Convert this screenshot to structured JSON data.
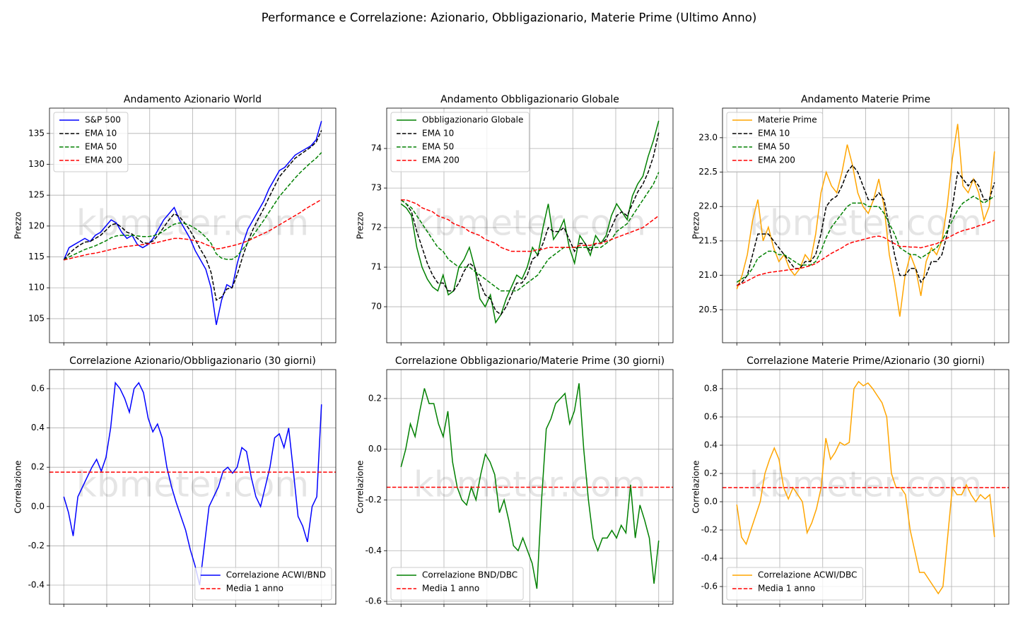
{
  "title": "Performance e Correlazione: Azionario, Obbligazionario, Materie Prime (Ultimo Anno)",
  "watermark": "kbmeter.com",
  "chart_data": [
    {
      "type": "line",
      "title": "Andamento Azionario World",
      "ylabel": "Prezzo",
      "ylim": [
        101.1,
        139.1
      ],
      "yticks": [
        105,
        110,
        115,
        120,
        125,
        130,
        135
      ],
      "grid": true,
      "legend": "upper left",
      "series": [
        {
          "name": "S&P 500",
          "color": "#0000ff",
          "linestyle": "solid",
          "values": [
            114.5,
            116.5,
            117,
            117.5,
            118,
            117.5,
            118.5,
            119,
            120,
            121,
            120.5,
            119,
            118,
            118.5,
            117,
            116.5,
            117,
            118,
            119.5,
            121,
            122,
            123,
            121,
            119.5,
            118,
            116,
            114.5,
            113,
            110,
            104,
            108,
            110.5,
            110,
            114,
            117,
            119.5,
            121,
            122.5,
            124,
            126,
            127.5,
            129,
            129.5,
            130.5,
            131.5,
            132,
            132.5,
            133,
            134,
            137
          ]
        },
        {
          "name": "EMA 10",
          "color": "#000000",
          "linestyle": "dashed",
          "values": [
            114.5,
            115.5,
            116.3,
            116.9,
            117.4,
            117.5,
            118,
            118.5,
            119.3,
            120.2,
            120.4,
            119.8,
            119,
            118.7,
            118,
            117.3,
            117.2,
            117.6,
            118.6,
            119.8,
            121,
            122,
            121.5,
            120.5,
            119.3,
            117.8,
            116.2,
            114.8,
            112.5,
            108,
            108.5,
            109.8,
            110,
            112.2,
            115,
            117.5,
            119.5,
            121.2,
            122.8,
            124.6,
            126.3,
            128,
            129,
            130,
            131,
            131.6,
            132.2,
            132.8,
            133.6,
            135.5
          ]
        },
        {
          "name": "EMA 50",
          "color": "#008000",
          "linestyle": "dashed",
          "values": [
            114.5,
            115,
            115.4,
            115.8,
            116.2,
            116.5,
            116.8,
            117.2,
            117.6,
            118.1,
            118.4,
            118.5,
            118.5,
            118.5,
            118.4,
            118.3,
            118.3,
            118.4,
            118.7,
            119.2,
            119.8,
            120.3,
            120.5,
            120.4,
            120.1,
            119.6,
            119,
            118.2,
            117.2,
            115.5,
            114.8,
            114.6,
            114.6,
            115.2,
            116.2,
            117.3,
            118.5,
            119.7,
            120.9,
            122.2,
            123.5,
            124.8,
            125.8,
            126.8,
            127.8,
            128.7,
            129.5,
            130.3,
            131,
            131.9
          ]
        },
        {
          "name": "EMA 200",
          "color": "#ff0000",
          "linestyle": "dashed",
          "values": [
            114.5,
            114.7,
            114.9,
            115.1,
            115.3,
            115.5,
            115.6,
            115.8,
            116,
            116.2,
            116.4,
            116.6,
            116.7,
            116.8,
            116.9,
            117,
            117.1,
            117.2,
            117.4,
            117.6,
            117.8,
            118,
            118,
            117.9,
            117.8,
            117.6,
            117.4,
            117,
            116.7,
            116.3,
            116.4,
            116.6,
            116.8,
            117,
            117.3,
            117.6,
            118,
            118.4,
            118.8,
            119.2,
            119.7,
            120.2,
            120.7,
            121.2,
            121.7,
            122.2,
            122.8,
            123.3,
            123.8,
            124.3
          ]
        }
      ]
    },
    {
      "type": "line",
      "title": "Andamento Obbligazionario Globale",
      "ylabel": "Prezzo",
      "ylim": [
        69.09,
        75.02
      ],
      "yticks": [
        70,
        71,
        72,
        73,
        74
      ],
      "grid": true,
      "legend": "upper left",
      "series": [
        {
          "name": "Obbligazionario Globale",
          "color": "#008000",
          "linestyle": "solid",
          "values": [
            72.6,
            72.5,
            72.3,
            71.5,
            71,
            70.7,
            70.5,
            70.4,
            70.8,
            70.3,
            70.4,
            71,
            71.2,
            71.5,
            71,
            70.2,
            70,
            70.3,
            69.6,
            69.8,
            70.2,
            70.5,
            70.8,
            70.7,
            71,
            71.5,
            71.3,
            72,
            72.6,
            71.7,
            71.9,
            72.2,
            71.5,
            71.1,
            71.8,
            71.6,
            71.3,
            71.8,
            71.6,
            71.8,
            72.3,
            72.6,
            72.4,
            72.2,
            72.8,
            73.1,
            73.3,
            73.8,
            74.2,
            74.7
          ]
        },
        {
          "name": "EMA 10",
          "color": "#000000",
          "linestyle": "dashed",
          "values": [
            72.7,
            72.6,
            72.4,
            71.9,
            71.5,
            71.1,
            70.8,
            70.6,
            70.6,
            70.4,
            70.4,
            70.6,
            70.9,
            71.1,
            71,
            70.6,
            70.3,
            70.2,
            69.9,
            69.8,
            70,
            70.3,
            70.6,
            70.6,
            70.8,
            71.2,
            71.3,
            71.6,
            72,
            71.9,
            71.9,
            72,
            71.7,
            71.4,
            71.6,
            71.6,
            71.4,
            71.6,
            71.6,
            71.7,
            72,
            72.3,
            72.4,
            72.3,
            72.6,
            72.9,
            73.1,
            73.4,
            73.8,
            74.4
          ]
        },
        {
          "name": "EMA 50",
          "color": "#008000",
          "linestyle": "dashed",
          "values": [
            72.7,
            72.6,
            72.5,
            72.3,
            72.1,
            71.9,
            71.7,
            71.5,
            71.4,
            71.2,
            71.1,
            71,
            71,
            71,
            70.9,
            70.8,
            70.7,
            70.6,
            70.5,
            70.4,
            70.4,
            70.4,
            70.4,
            70.5,
            70.6,
            70.7,
            70.8,
            71,
            71.2,
            71.3,
            71.4,
            71.5,
            71.5,
            71.5,
            71.5,
            71.5,
            71.5,
            71.5,
            71.5,
            71.6,
            71.7,
            71.9,
            72,
            72.1,
            72.3,
            72.5,
            72.7,
            72.9,
            73.1,
            73.4
          ]
        },
        {
          "name": "EMA 200",
          "color": "#ff0000",
          "linestyle": "dashed",
          "values": [
            72.7,
            72.7,
            72.65,
            72.6,
            72.5,
            72.45,
            72.4,
            72.3,
            72.25,
            72.2,
            72.1,
            72.05,
            72,
            71.9,
            71.85,
            71.8,
            71.7,
            71.65,
            71.6,
            71.5,
            71.45,
            71.4,
            71.4,
            71.4,
            71.4,
            71.4,
            71.45,
            71.45,
            71.5,
            71.5,
            71.5,
            71.5,
            71.5,
            71.5,
            71.55,
            71.55,
            71.55,
            71.6,
            71.6,
            71.65,
            71.7,
            71.75,
            71.8,
            71.85,
            71.9,
            71.95,
            72,
            72.1,
            72.2,
            72.3
          ]
        }
      ]
    },
    {
      "type": "line",
      "title": "Andamento Materie Prime",
      "ylabel": "Prezzo",
      "ylim": [
        20.02,
        23.43
      ],
      "yticks": [
        20.5,
        {
          "value": 21,
          "label": "21.0"
        },
        21.5,
        {
          "value": 22,
          "label": "22.0"
        },
        22.5,
        {
          "value": 23,
          "label": "23.0"
        }
      ],
      "grid": true,
      "legend": "upper left",
      "series": [
        {
          "name": "Materie Prime",
          "color": "#ffa500",
          "linestyle": "solid",
          "values": [
            20.8,
            21,
            21.3,
            21.8,
            22.1,
            21.5,
            21.7,
            21.4,
            21.2,
            21.3,
            21.1,
            21,
            21.1,
            21.3,
            21.2,
            21.6,
            22.2,
            22.5,
            22.3,
            22.2,
            22.5,
            22.9,
            22.6,
            22.2,
            22,
            21.9,
            22.1,
            22.4,
            22,
            21.3,
            20.9,
            20.4,
            21,
            21.3,
            21.1,
            20.7,
            21.2,
            21.4,
            21.3,
            21.5,
            22,
            22.7,
            23.2,
            22.3,
            22.2,
            22.4,
            22.2,
            21.8,
            22,
            22.8
          ]
        },
        {
          "name": "EMA 10",
          "color": "#000000",
          "linestyle": "dashed",
          "values": [
            20.85,
            20.9,
            21,
            21.3,
            21.6,
            21.6,
            21.6,
            21.5,
            21.4,
            21.3,
            21.2,
            21.1,
            21.1,
            21.2,
            21.2,
            21.3,
            21.6,
            22,
            22.1,
            22.15,
            22.3,
            22.5,
            22.6,
            22.5,
            22.3,
            22.1,
            22.1,
            22.2,
            22.1,
            21.7,
            21.3,
            21,
            21,
            21.1,
            21.1,
            20.9,
            21,
            21.2,
            21.2,
            21.3,
            21.6,
            22,
            22.5,
            22.4,
            22.3,
            22.4,
            22.3,
            22.1,
            22.1,
            22.35
          ]
        },
        {
          "name": "EMA 50",
          "color": "#008000",
          "linestyle": "dashed",
          "values": [
            20.9,
            20.95,
            21,
            21.1,
            21.25,
            21.3,
            21.35,
            21.35,
            21.3,
            21.3,
            21.25,
            21.2,
            21.15,
            21.15,
            21.15,
            21.2,
            21.35,
            21.55,
            21.7,
            21.8,
            21.9,
            22,
            22.05,
            22.05,
            22.05,
            22,
            22,
            22,
            21.9,
            21.75,
            21.6,
            21.4,
            21.35,
            21.3,
            21.3,
            21.25,
            21.3,
            21.35,
            21.4,
            21.5,
            21.65,
            21.8,
            21.95,
            22.05,
            22.1,
            22.15,
            22.1,
            22.05,
            22.1,
            22.15
          ]
        },
        {
          "name": "EMA 200",
          "color": "#ff0000",
          "linestyle": "dashed",
          "values": [
            20.85,
            20.88,
            20.92,
            20.96,
            21,
            21.02,
            21.04,
            21.05,
            21.06,
            21.07,
            21.08,
            21.09,
            21.1,
            21.12,
            21.14,
            21.17,
            21.22,
            21.27,
            21.32,
            21.36,
            21.4,
            21.45,
            21.48,
            21.5,
            21.52,
            21.54,
            21.56,
            21.57,
            21.55,
            21.5,
            21.46,
            21.42,
            21.42,
            21.41,
            21.41,
            21.4,
            21.42,
            21.44,
            21.46,
            21.5,
            21.54,
            21.58,
            21.62,
            21.65,
            21.67,
            21.69,
            21.72,
            21.74,
            21.77,
            21.8
          ]
        }
      ]
    },
    {
      "type": "line",
      "title": "Correlazione Azionario/Obbligazionario (30 giorni)",
      "ylabel": "Correlazione",
      "ylim": [
        -0.497,
        0.697
      ],
      "yticks": [
        -0.4,
        -0.2,
        {
          "value": 0,
          "label": "0.0"
        },
        0.2,
        0.4,
        0.6
      ],
      "grid": true,
      "legend": "lower right",
      "series": [
        {
          "name": "Correlazione ACWI/BND",
          "color": "#0000ff",
          "linestyle": "solid",
          "values": [
            0.05,
            -0.03,
            -0.15,
            0.05,
            0.1,
            0.15,
            0.2,
            0.24,
            0.18,
            0.25,
            0.4,
            0.63,
            0.6,
            0.55,
            0.48,
            0.6,
            0.63,
            0.58,
            0.45,
            0.38,
            0.42,
            0.35,
            0.2,
            0.1,
            0.02,
            -0.05,
            -0.12,
            -0.22,
            -0.3,
            -0.4,
            -0.2,
            0,
            0.05,
            0.1,
            0.18,
            0.2,
            0.17,
            0.2,
            0.3,
            0.28,
            0.15,
            0.05,
            0,
            0.1,
            0.2,
            0.35,
            0.37,
            0.3,
            0.4,
            0.18,
            -0.05,
            -0.1,
            -0.18,
            0,
            0.05,
            0.52
          ]
        },
        {
          "name": "Media 1 anno",
          "color": "#ff0000",
          "linestyle": "dashed",
          "value": 0.175
        }
      ]
    },
    {
      "type": "line",
      "title": "Correlazione Obbligazionario/Materie Prime (30 giorni)",
      "ylabel": "Correlazione",
      "ylim": [
        -0.611,
        0.314
      ],
      "yticks": [
        -0.6,
        -0.4,
        -0.2,
        {
          "value": 0,
          "label": "0.0"
        },
        0.2
      ],
      "grid": true,
      "legend": "lower left",
      "series": [
        {
          "name": "Correlazione BND/DBC",
          "color": "#008000",
          "linestyle": "solid",
          "values": [
            -0.07,
            0,
            0.1,
            0.05,
            0.15,
            0.24,
            0.18,
            0.18,
            0.1,
            0.05,
            0.15,
            -0.05,
            -0.15,
            -0.2,
            -0.22,
            -0.15,
            -0.2,
            -0.1,
            -0.02,
            -0.05,
            -0.1,
            -0.25,
            -0.2,
            -0.28,
            -0.38,
            -0.4,
            -0.35,
            -0.4,
            -0.45,
            -0.55,
            -0.2,
            0.08,
            0.12,
            0.18,
            0.2,
            0.22,
            0.1,
            0.15,
            0.26,
            0,
            -0.2,
            -0.35,
            -0.4,
            -0.35,
            -0.35,
            -0.32,
            -0.35,
            -0.3,
            -0.33,
            -0.14,
            -0.35,
            -0.22,
            -0.28,
            -0.35,
            -0.53,
            -0.36
          ]
        },
        {
          "name": "Media 1 anno",
          "color": "#ff0000",
          "linestyle": "dashed",
          "value": -0.15
        }
      ]
    },
    {
      "type": "line",
      "title": "Correlazione Materie Prime/Azionario (30 giorni)",
      "ylabel": "Correlazione",
      "ylim": [
        -0.725,
        0.935
      ],
      "yticks": [
        -0.6,
        -0.4,
        -0.2,
        {
          "value": 0,
          "label": "0.0"
        },
        0.2,
        0.4,
        0.6,
        0.8
      ],
      "grid": true,
      "legend": "lower left",
      "series": [
        {
          "name": "Correlazione ACWI/DBC",
          "color": "#ffa500",
          "linestyle": "solid",
          "values": [
            -0.02,
            -0.25,
            -0.3,
            -0.2,
            -0.1,
            0,
            0.2,
            0.3,
            0.38,
            0.3,
            0.1,
            0.02,
            0.1,
            0.05,
            0,
            -0.22,
            -0.15,
            -0.05,
            0.1,
            0.45,
            0.3,
            0.35,
            0.42,
            0.4,
            0.42,
            0.8,
            0.85,
            0.82,
            0.84,
            0.8,
            0.75,
            0.7,
            0.6,
            0.2,
            0.1,
            0.1,
            0.05,
            -0.2,
            -0.35,
            -0.5,
            -0.5,
            -0.55,
            -0.6,
            -0.65,
            -0.6,
            -0.25,
            0.1,
            0.05,
            0.05,
            0.12,
            0.05,
            0,
            0.05,
            0.02,
            0.05,
            -0.25
          ]
        },
        {
          "name": "Media 1 anno",
          "color": "#ff0000",
          "linestyle": "dashed",
          "value": 0.1
        }
      ]
    }
  ]
}
